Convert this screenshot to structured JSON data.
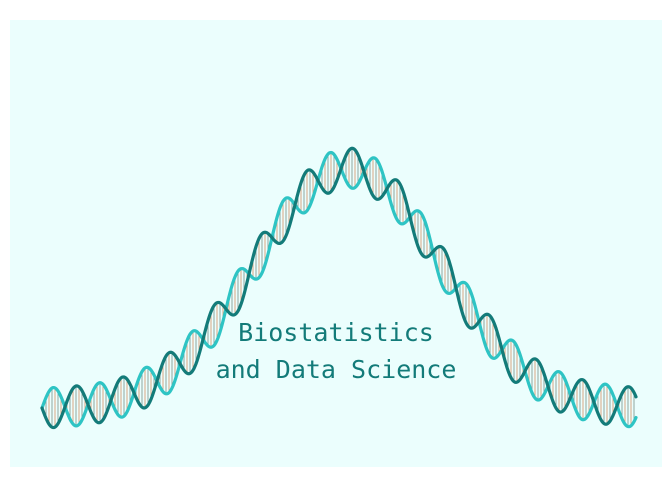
{
  "logo": {
    "title_line1": "Biostatistics",
    "title_line2": "and Data Science",
    "colors": {
      "background": "#ebfefd",
      "strand_dark": "#137b79",
      "strand_light": "#2ec4c4",
      "rung_a": "#d9a684",
      "rung_b": "#8fa7a0",
      "text": "#137b79"
    },
    "shape": "dna-double-helix-along-bell-curve"
  }
}
